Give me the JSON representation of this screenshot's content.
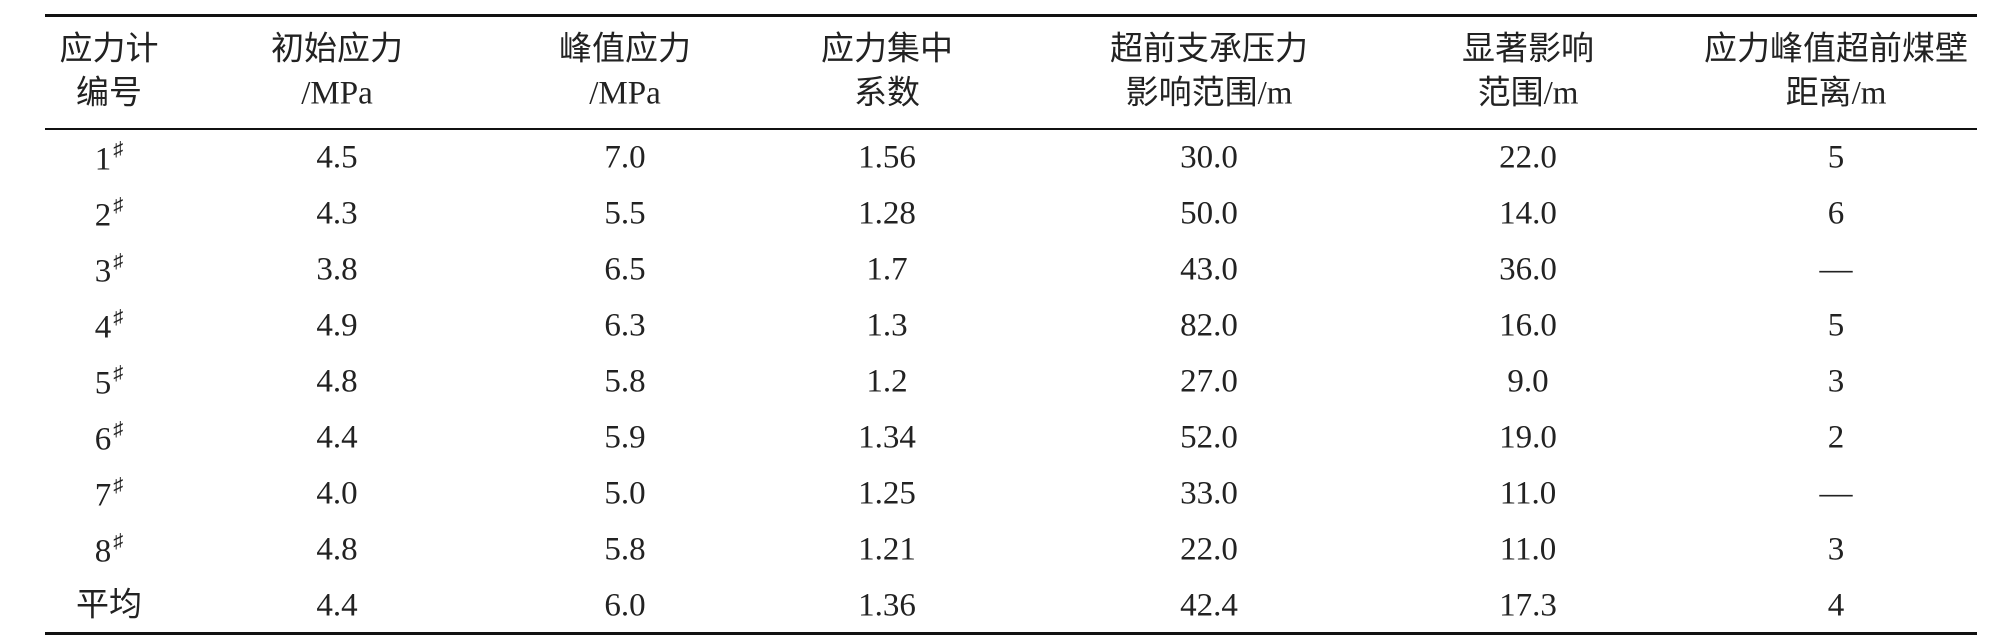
{
  "table": {
    "header": [
      [
        "应力计",
        "编号"
      ],
      [
        "初始应力",
        "/MPa"
      ],
      [
        "峰值应力",
        "/MPa"
      ],
      [
        "应力集中",
        "系数"
      ],
      [
        "超前支承压力",
        "影响范围/m"
      ],
      [
        "显著影响",
        "范围/m"
      ],
      [
        "应力峰值超前煤壁",
        "距离/m"
      ]
    ],
    "rows": [
      [
        {
          "num": "1",
          "sup": "♯"
        },
        "4.5",
        "7.0",
        "1.56",
        "30.0",
        "22.0",
        "5"
      ],
      [
        {
          "num": "2",
          "sup": "♯"
        },
        "4.3",
        "5.5",
        "1.28",
        "50.0",
        "14.0",
        "6"
      ],
      [
        {
          "num": "3",
          "sup": "♯"
        },
        "3.8",
        "6.5",
        "1.7",
        "43.0",
        "36.0",
        "—"
      ],
      [
        {
          "num": "4",
          "sup": "♯"
        },
        "4.9",
        "6.3",
        "1.3",
        "82.0",
        "16.0",
        "5"
      ],
      [
        {
          "num": "5",
          "sup": "♯"
        },
        "4.8",
        "5.8",
        "1.2",
        "27.0",
        "9.0",
        "3"
      ],
      [
        {
          "num": "6",
          "sup": "♯"
        },
        "4.4",
        "5.9",
        "1.34",
        "52.0",
        "19.0",
        "2"
      ],
      [
        {
          "num": "7",
          "sup": "♯"
        },
        "4.0",
        "5.0",
        "1.25",
        "33.0",
        "11.0",
        "—"
      ],
      [
        {
          "num": "8",
          "sup": "♯"
        },
        "4.8",
        "5.8",
        "1.21",
        "22.0",
        "11.0",
        "3"
      ],
      [
        "平均",
        "4.4",
        "6.0",
        "1.36",
        "42.4",
        "17.3",
        "4"
      ]
    ]
  }
}
